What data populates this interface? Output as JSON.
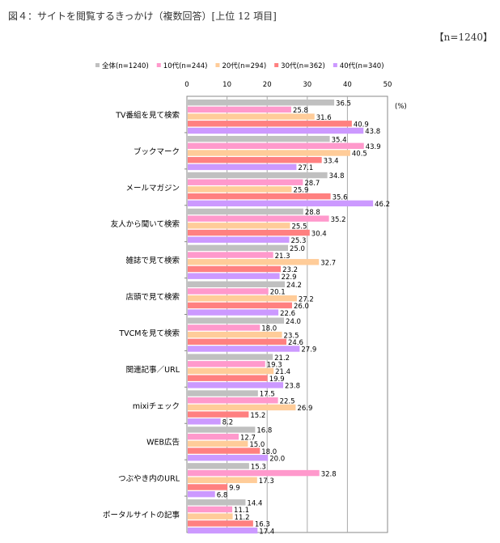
{
  "chart_data": {
    "type": "bar",
    "orientation": "horizontal",
    "title": "図４：サイトを閲覧するきっかけ（複数回答）[上位 12 項目]",
    "sample_note": "【n=1240】",
    "unit_label": "(%)",
    "xlim": [
      0,
      50
    ],
    "xticks": [
      "0",
      "10",
      "20",
      "30",
      "40",
      "50"
    ],
    "categories": [
      "TV番組を見て検索",
      "ブックマーク",
      "メールマガジン",
      "友人から聞いて検索",
      "雑誌で見て検索",
      "店頭で見て検索",
      "TVCMを見て検索",
      "関連記事／URL",
      "mixiチェック",
      "WEB広告",
      "つぶやき内のURL",
      "ポータルサイトの記事"
    ],
    "series": [
      {
        "name": "全体(n=1240)",
        "color": "#c0c0c0",
        "values": [
          36.5,
          35.4,
          34.8,
          28.8,
          25.0,
          24.2,
          24.0,
          21.2,
          17.5,
          16.8,
          15.3,
          14.4
        ]
      },
      {
        "name": "10代(n=244)",
        "color": "#ff99cc",
        "values": [
          25.8,
          43.9,
          28.7,
          35.2,
          21.3,
          20.1,
          18.0,
          19.3,
          22.5,
          12.7,
          32.8,
          11.1
        ]
      },
      {
        "name": "20代(n=294)",
        "color": "#ffcc99",
        "values": [
          31.6,
          40.5,
          25.9,
          25.5,
          32.7,
          27.2,
          23.5,
          21.4,
          26.9,
          15.0,
          17.3,
          11.2
        ]
      },
      {
        "name": "30代(n=362)",
        "color": "#ff8080",
        "values": [
          40.9,
          33.4,
          35.6,
          30.4,
          23.2,
          26.0,
          24.6,
          19.9,
          15.2,
          18.0,
          9.9,
          16.3
        ]
      },
      {
        "name": "40代(n=340)",
        "color": "#cc99ff",
        "values": [
          43.8,
          27.1,
          46.2,
          25.3,
          22.9,
          22.6,
          27.9,
          23.8,
          8.2,
          20.0,
          6.8,
          17.4
        ]
      }
    ]
  }
}
